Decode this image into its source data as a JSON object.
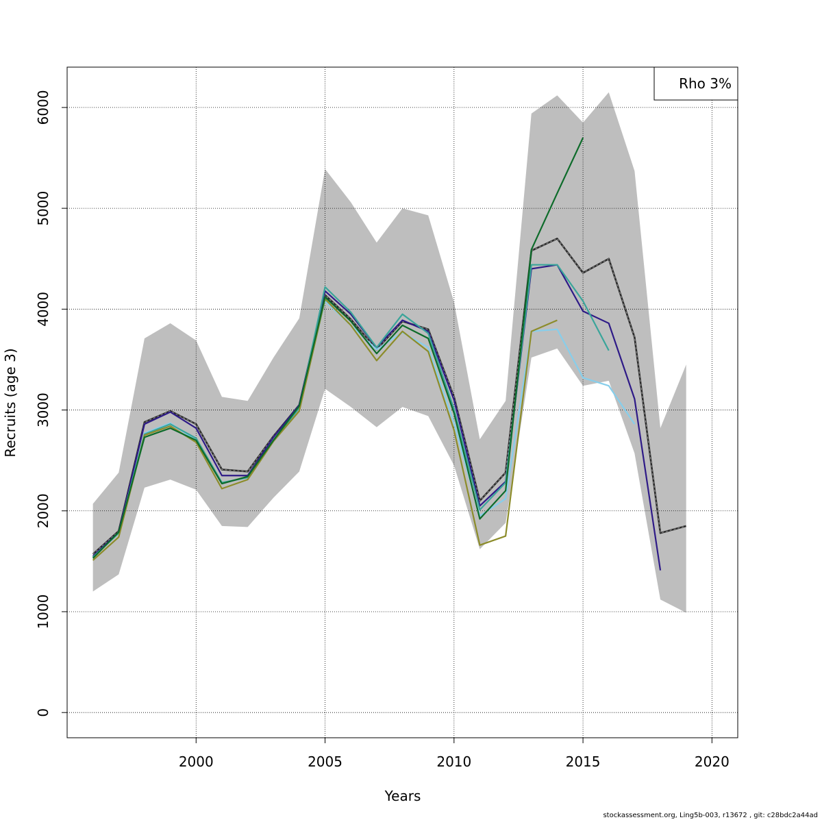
{
  "chart_data": {
    "type": "line",
    "title": "",
    "xlabel": "Years",
    "ylabel": "Recruits (age 3)",
    "xlim": [
      1995,
      2021
    ],
    "ylim": [
      -250,
      6400
    ],
    "xticks": [
      2000,
      2005,
      2010,
      2015,
      2020
    ],
    "yticks": [
      0,
      1000,
      2000,
      3000,
      4000,
      5000,
      6000
    ],
    "grid": true,
    "legend": {
      "position": "top-right",
      "text": "Rho 3%"
    },
    "band": {
      "color": "#bebebe",
      "x": [
        1996,
        1997,
        1998,
        1999,
        2000,
        2001,
        2002,
        2003,
        2004,
        2005,
        2006,
        2007,
        2008,
        2009,
        2010,
        2011,
        2012,
        2013,
        2014,
        2015,
        2016,
        2017,
        2018,
        2019
      ],
      "upper": [
        2070,
        2380,
        3710,
        3860,
        3690,
        3130,
        3090,
        3520,
        3910,
        5390,
        5060,
        4660,
        5000,
        4930,
        4070,
        2710,
        3090,
        5940,
        6120,
        5850,
        6150,
        5370,
        2820,
        3450
      ],
      "lower": [
        1200,
        1370,
        2230,
        2310,
        2210,
        1850,
        1840,
        2130,
        2390,
        3210,
        3030,
        2830,
        3030,
        2940,
        2450,
        1620,
        1880,
        3520,
        3610,
        3240,
        3290,
        2570,
        1120,
        990
      ]
    },
    "series": [
      {
        "color": "#2a2a2a",
        "dashed": true,
        "x": [
          1996,
          1997,
          1998,
          1999,
          2000,
          2001,
          2002,
          2003,
          2004,
          2005,
          2006,
          2007,
          2008,
          2009,
          2010,
          2011,
          2012,
          2013,
          2014,
          2015,
          2016,
          2017,
          2018,
          2019
        ],
        "values": [
          1570,
          1800,
          2880,
          2990,
          2860,
          2410,
          2390,
          2740,
          3050,
          4140,
          3900,
          3600,
          3880,
          3800,
          3130,
          2100,
          2380,
          4580,
          4700,
          4360,
          4500,
          3720,
          1780,
          1850
        ]
      },
      {
        "color": "#2e1a87",
        "x": [
          1996,
          1997,
          1998,
          1999,
          2000,
          2001,
          2002,
          2003,
          2004,
          2005,
          2006,
          2007,
          2008,
          2009,
          2010,
          2011,
          2012,
          2013,
          2014,
          2015,
          2016,
          2017,
          2018
        ],
        "values": [
          1550,
          1790,
          2860,
          2980,
          2820,
          2350,
          2350,
          2730,
          3050,
          4180,
          3950,
          3620,
          3890,
          3780,
          3100,
          2050,
          2290,
          4400,
          4440,
          3980,
          3860,
          3110,
          1410
        ]
      },
      {
        "color": "#87ceeb",
        "x": [
          1996,
          1997,
          1998,
          1999,
          2000,
          2001,
          2002,
          2003,
          2004,
          2005,
          2006,
          2007,
          2008,
          2009,
          2010,
          2011,
          2012,
          2013,
          2014,
          2015,
          2016,
          2017
        ],
        "values": [
          1540,
          1780,
          2770,
          2870,
          2700,
          2280,
          2330,
          2690,
          3020,
          4080,
          3840,
          3600,
          3770,
          3620,
          2870,
          1950,
          2120,
          3780,
          3800,
          3320,
          3240,
          2860
        ]
      },
      {
        "color": "#3aa59a",
        "x": [
          1996,
          1997,
          1998,
          1999,
          2000,
          2001,
          2002,
          2003,
          2004,
          2005,
          2006,
          2007,
          2008,
          2009,
          2010,
          2011,
          2012,
          2013,
          2014,
          2015,
          2016
        ],
        "values": [
          1540,
          1780,
          2760,
          2860,
          2720,
          2280,
          2330,
          2700,
          3020,
          4220,
          3970,
          3620,
          3950,
          3760,
          3010,
          2010,
          2280,
          4440,
          4440,
          4080,
          3590
        ]
      },
      {
        "color": "#8c8c2a",
        "x": [
          1996,
          1997,
          1998,
          1999,
          2000,
          2001,
          2002,
          2003,
          2004,
          2005,
          2006,
          2007,
          2008,
          2009,
          2010,
          2011,
          2012,
          2013,
          2014
        ],
        "values": [
          1510,
          1740,
          2750,
          2840,
          2680,
          2220,
          2310,
          2690,
          2990,
          4100,
          3840,
          3490,
          3780,
          3580,
          2800,
          1660,
          1750,
          3780,
          3890
        ]
      },
      {
        "color": "#0d6b2a",
        "x": [
          1996,
          1997,
          1998,
          1999,
          2000,
          2001,
          2002,
          2003,
          2004,
          2005,
          2006,
          2007,
          2008,
          2009,
          2010,
          2011,
          2012,
          2013,
          2014,
          2015
        ],
        "values": [
          1530,
          1790,
          2730,
          2820,
          2700,
          2270,
          2340,
          2700,
          3040,
          4120,
          3880,
          3560,
          3840,
          3710,
          2970,
          1920,
          2200,
          4590,
          5150,
          5700
        ]
      }
    ]
  },
  "footer": "stockassessment.org, Ling5b-003, r13672 , git: c28bdc2a44ad"
}
